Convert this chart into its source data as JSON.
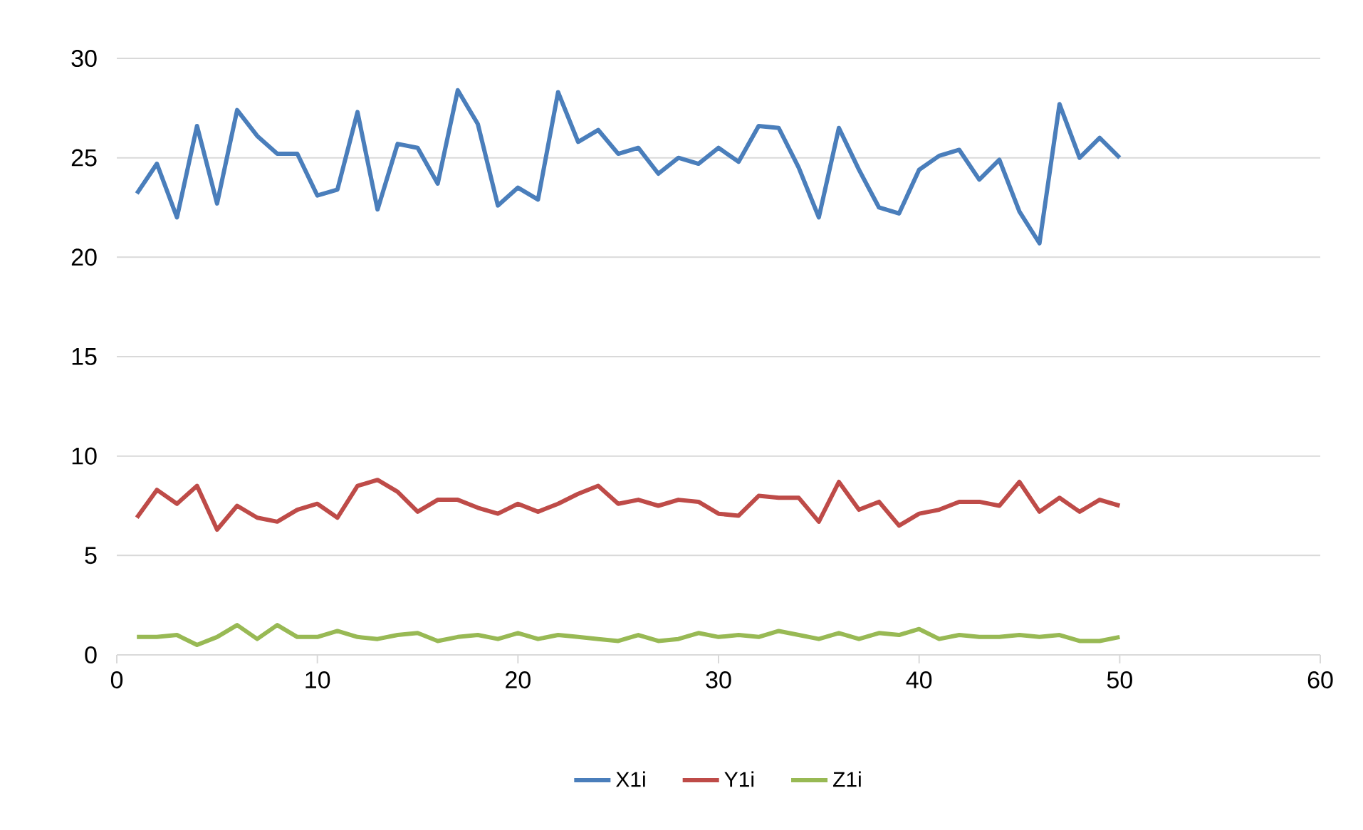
{
  "chart_data": {
    "type": "line",
    "x": [
      1,
      2,
      3,
      4,
      5,
      6,
      7,
      8,
      9,
      10,
      11,
      12,
      13,
      14,
      15,
      16,
      17,
      18,
      19,
      20,
      21,
      22,
      23,
      24,
      25,
      26,
      27,
      28,
      29,
      30,
      31,
      32,
      33,
      34,
      35,
      36,
      37,
      38,
      39,
      40,
      41,
      42,
      43,
      44,
      45,
      46,
      47,
      48,
      49,
      50
    ],
    "series": [
      {
        "name": "X1i",
        "color": "#4a7ebb",
        "values": [
          23.2,
          24.7,
          22.0,
          26.6,
          22.7,
          27.4,
          26.1,
          25.2,
          25.2,
          23.1,
          23.4,
          27.3,
          22.4,
          25.7,
          25.5,
          23.7,
          28.4,
          26.7,
          22.6,
          23.5,
          22.9,
          28.3,
          25.8,
          26.4,
          25.2,
          25.5,
          24.2,
          25.0,
          24.7,
          25.5,
          24.8,
          26.6,
          26.5,
          24.5,
          22.0,
          26.5,
          24.4,
          22.5,
          22.2,
          24.4,
          25.1,
          25.4,
          23.9,
          24.9,
          22.3,
          20.7,
          27.7,
          25.0,
          26.0,
          25.0
        ]
      },
      {
        "name": "Y1i",
        "color": "#be4b48",
        "values": [
          6.9,
          8.3,
          7.6,
          8.5,
          6.3,
          7.5,
          6.9,
          6.7,
          7.3,
          7.6,
          6.9,
          8.5,
          8.8,
          8.2,
          7.2,
          7.8,
          7.8,
          7.4,
          7.1,
          7.6,
          7.2,
          7.6,
          8.1,
          8.5,
          7.6,
          7.8,
          7.5,
          7.8,
          7.7,
          7.1,
          7.0,
          8.0,
          7.9,
          7.9,
          6.7,
          8.7,
          7.3,
          7.7,
          6.5,
          7.1,
          7.3,
          7.7,
          7.7,
          7.5,
          8.7,
          7.2,
          7.9,
          7.2,
          7.8,
          7.5
        ]
      },
      {
        "name": "Z1i",
        "color": "#98b954",
        "values": [
          0.9,
          0.9,
          1.0,
          0.5,
          0.9,
          1.5,
          0.8,
          1.5,
          0.9,
          0.9,
          1.2,
          0.9,
          0.8,
          1.0,
          1.1,
          0.7,
          0.9,
          1.0,
          0.8,
          1.1,
          0.8,
          1.0,
          0.9,
          0.8,
          0.7,
          1.0,
          0.7,
          0.8,
          1.1,
          0.9,
          1.0,
          0.9,
          1.2,
          1.0,
          0.8,
          1.1,
          0.8,
          1.1,
          1.0,
          1.3,
          0.8,
          1.0,
          0.9,
          0.9,
          1.0,
          0.9,
          1.0,
          0.7,
          0.7,
          0.9
        ]
      }
    ],
    "xlim": [
      0,
      60
    ],
    "xticks": [
      0,
      10,
      20,
      30,
      40,
      50,
      60
    ],
    "ylim": [
      0,
      30
    ],
    "yticks": [
      0,
      5,
      10,
      15,
      20,
      25,
      30
    ],
    "grid": "y",
    "legend": "bottom",
    "marker": "none",
    "line_style": "solid"
  }
}
